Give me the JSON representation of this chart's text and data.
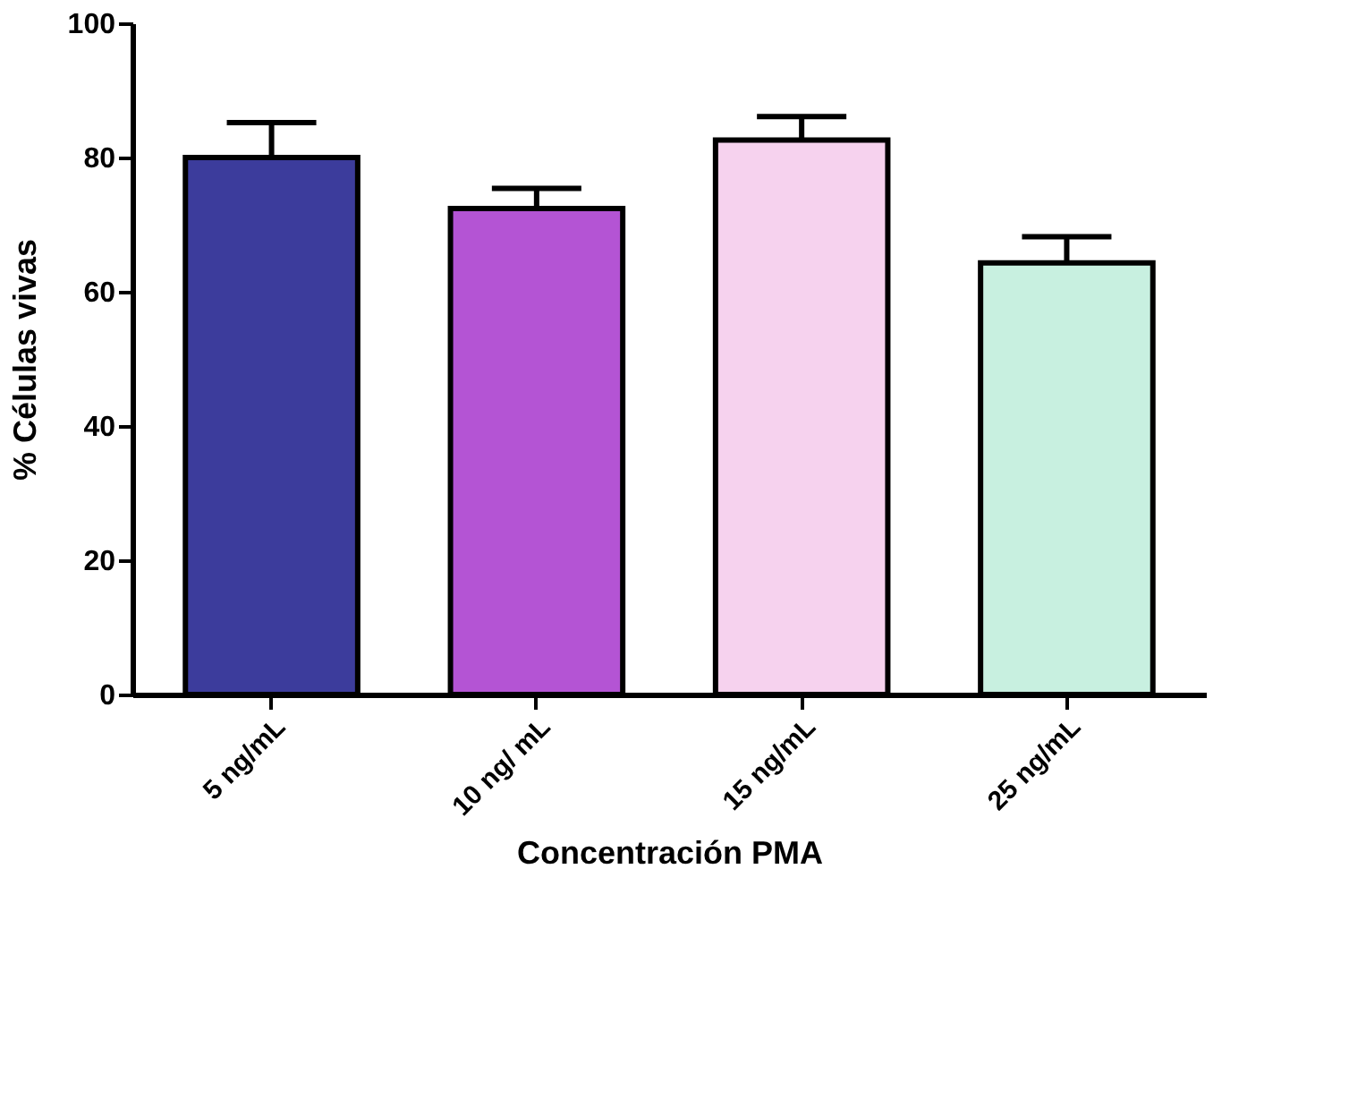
{
  "chart_data": {
    "type": "bar",
    "xlabel": "Concentración PMA",
    "ylabel": "% Células vivas",
    "categories": [
      "5 ng/mL",
      "10 ng/ mL",
      "15 ng/mL",
      "25 ng/mL"
    ],
    "values": [
      80,
      72.4,
      82.6,
      64.3
    ],
    "errors": [
      [
        80,
        85.2
      ],
      [
        72.4,
        75.4
      ],
      [
        82.6,
        86.1
      ],
      [
        64.3,
        68.2
      ]
    ],
    "colors": [
      "#3c3c9c",
      "#b454d4",
      "#f6d2ee",
      "#c8f0e0"
    ],
    "ylim": [
      0,
      100
    ],
    "yticks": [
      0,
      20,
      40,
      60,
      80,
      100
    ],
    "grid": false,
    "legend": false
  }
}
